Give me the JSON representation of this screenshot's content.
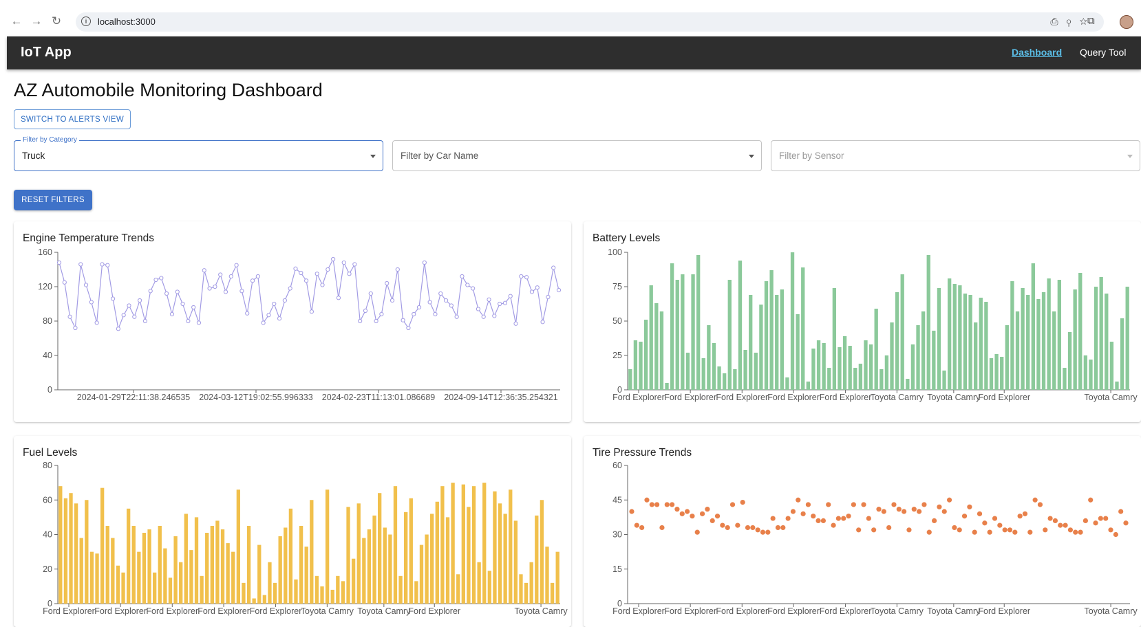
{
  "browser": {
    "url": "localhost:3000"
  },
  "appbar": {
    "title": "IoT App",
    "nav_dashboard": "Dashboard",
    "nav_query": "Query Tool"
  },
  "page": {
    "title": "AZ Automobile Monitoring Dashboard",
    "alerts_button": "SWITCH TO ALERTS VIEW",
    "reset_button": "RESET FILTERS"
  },
  "filters": {
    "category": {
      "label": "Filter by Category",
      "value": "Truck"
    },
    "car_name": {
      "placeholder": "Filter by Car Name"
    },
    "sensor": {
      "placeholder": "Filter by Sensor"
    }
  },
  "colors": {
    "appbar": "#2e2e2e",
    "primary": "#3f72c8",
    "link": "#5bbde6",
    "engine": "#a29be4",
    "battery": "#8bc99a",
    "fuel": "#f1c04c",
    "tire": "#e8804a"
  },
  "chart_data": [
    {
      "id": "engine",
      "type": "line",
      "title": "Engine Temperature Trends",
      "x_tick_labels": [
        "2024-01-29T22:11:38.246535",
        "2024-03-12T19:02:55.996333",
        "2024-02-23T11:13:01.086689",
        "2024-09-14T12:36:35.254321"
      ],
      "y_ticks": [
        0,
        40,
        80,
        120,
        160
      ],
      "ylim": [
        0,
        160
      ],
      "values": [
        148,
        125,
        85,
        72,
        146,
        122,
        102,
        78,
        146,
        145,
        106,
        71,
        87,
        98,
        85,
        104,
        80,
        115,
        128,
        130,
        112,
        88,
        114,
        100,
        80,
        96,
        78,
        139,
        118,
        120,
        134,
        114,
        132,
        145,
        115,
        89,
        127,
        132,
        78,
        87,
        100,
        83,
        104,
        118,
        141,
        136,
        127,
        91,
        135,
        122,
        140,
        152,
        107,
        148,
        135,
        146,
        80,
        92,
        112,
        80,
        88,
        124,
        104,
        140,
        81,
        72,
        88,
        96,
        148,
        102,
        88,
        112,
        104,
        98,
        85,
        132,
        122,
        118,
        94,
        85,
        105,
        86,
        100,
        101,
        109,
        77,
        132,
        131,
        114,
        119,
        79,
        108,
        142,
        116
      ],
      "grid": false
    },
    {
      "id": "battery",
      "type": "bar",
      "title": "Battery Levels",
      "x_tick_labels": [
        "Ford Explorer",
        "Ford Explorer",
        "Ford Explorer",
        "Ford Explorer",
        "Ford Explorer",
        "Toyota Camry",
        "Toyota Camry",
        "Ford Explorer",
        "Toyota Camry"
      ],
      "y_ticks": [
        0,
        25,
        50,
        75,
        100
      ],
      "ylim": [
        0,
        100
      ],
      "values": [
        15,
        36,
        35,
        51,
        76,
        63,
        57,
        5,
        92,
        80,
        84,
        27,
        84,
        98,
        23,
        47,
        34,
        17,
        12,
        80,
        15,
        94,
        29,
        69,
        27,
        62,
        79,
        87,
        69,
        73,
        9,
        100,
        55,
        89,
        6,
        30,
        36,
        34,
        16,
        74,
        31,
        39,
        32,
        16,
        19,
        36,
        33,
        59,
        15,
        25,
        49,
        71,
        84,
        8,
        33,
        47,
        57,
        98,
        43,
        74,
        14,
        81,
        77,
        76,
        70,
        69,
        49,
        67,
        64,
        23,
        26,
        24,
        47,
        79,
        57,
        74,
        69,
        92,
        66,
        71,
        81,
        57,
        80,
        16,
        42,
        73,
        85,
        25,
        22,
        75,
        82,
        70,
        35,
        6,
        52,
        75
      ],
      "grid": false
    },
    {
      "id": "fuel",
      "type": "bar",
      "title": "Fuel Levels",
      "x_tick_labels": [
        "Ford Explorer",
        "Ford Explorer",
        "Ford Explorer",
        "Ford Explorer",
        "Ford Explorer",
        "Toyota Camry",
        "Toyota Camry",
        "Ford Explorer",
        "Toyota Camry"
      ],
      "y_ticks": [
        0,
        20,
        40,
        60,
        80
      ],
      "ylim": [
        0,
        80
      ],
      "values": [
        68,
        61,
        64,
        58,
        38,
        60,
        30,
        29,
        67,
        45,
        38,
        22,
        18,
        55,
        45,
        30,
        41,
        43,
        18,
        45,
        32,
        15,
        39,
        24,
        52,
        31,
        50,
        16,
        41,
        45,
        48,
        43,
        35,
        30,
        66,
        12,
        45,
        3,
        34,
        5,
        24,
        12,
        39,
        44,
        55,
        14,
        45,
        33,
        60,
        16,
        10,
        66,
        8,
        16,
        13,
        56,
        26,
        58,
        38,
        43,
        51,
        64,
        44,
        40,
        68,
        16,
        53,
        61,
        13,
        34,
        40,
        52,
        59,
        68,
        50,
        70,
        17,
        69,
        56,
        68,
        24,
        70,
        19,
        65,
        58,
        52,
        66,
        48,
        17,
        12,
        24,
        51,
        60,
        33,
        12,
        30
      ],
      "grid": false
    },
    {
      "id": "tire",
      "type": "scatter",
      "title": "Tire Pressure Trends",
      "x_tick_labels": [
        "Ford Explorer",
        "Ford Explorer",
        "Ford Explorer",
        "Ford Explorer",
        "Ford Explorer",
        "Toyota Camry",
        "Toyota Camry",
        "Ford Explorer",
        "Toyota Camry"
      ],
      "y_ticks": [
        0,
        15,
        30,
        45,
        60
      ],
      "ylim": [
        0,
        60
      ],
      "values": [
        40,
        34,
        33,
        45,
        43,
        43,
        33,
        43,
        43,
        41,
        39,
        40,
        38,
        31,
        39,
        41,
        36,
        38,
        34,
        33,
        43,
        34,
        44,
        33,
        33,
        32,
        31,
        31,
        37,
        33,
        33,
        37,
        40,
        45,
        39,
        43,
        38,
        36,
        36,
        43,
        34,
        37,
        37,
        38,
        43,
        32,
        43,
        37,
        32,
        41,
        40,
        33,
        43,
        41,
        40,
        32,
        41,
        40,
        43,
        31,
        36,
        42,
        40,
        45,
        33,
        32,
        38,
        42,
        31,
        39,
        35,
        31,
        37,
        34,
        32,
        32,
        31,
        38,
        39,
        31,
        45,
        43,
        32,
        37,
        36,
        34,
        34,
        32,
        31,
        31,
        36,
        45,
        35,
        37,
        37,
        32,
        30,
        40,
        35
      ],
      "grid": false
    }
  ]
}
